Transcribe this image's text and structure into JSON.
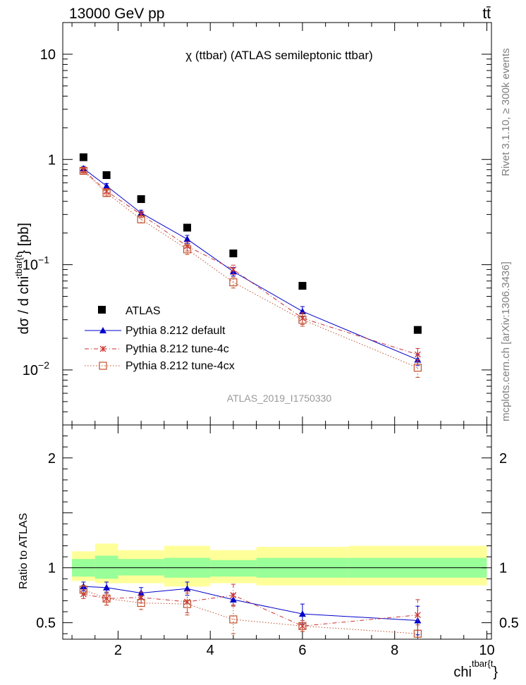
{
  "header": {
    "left_title": "13000 GeV pp",
    "right_title": "tt̄",
    "side_label_top": "Rivet 3.1.10, ≥ 300k events",
    "side_label_bottom": "mcplots.cern.ch [arXiv:1306.3436]"
  },
  "colors": {
    "atlas": "#000000",
    "default": "#0000cc",
    "tune4c": "#cc3333",
    "tune4cx": "#c0502a",
    "band_inner": "#99ff99",
    "band_outer": "#ffff99"
  },
  "chart_data": [
    {
      "type": "scatter",
      "scale": "log",
      "title": "χ (ttbar) (ATLAS semileptonic ttbar)",
      "watermark": "ATLAS_2019_I1750330",
      "ylabel_main": "dσ / d chi",
      "ylabel_sup": "tbar{t",
      "ylabel_tail": "} [pb]",
      "xlim": [
        0.8,
        10.1
      ],
      "ylim": [
        0.003,
        20
      ],
      "y_ticks": [
        {
          "value": 10,
          "label": "10",
          "exp": ""
        },
        {
          "value": 1,
          "label": "1",
          "exp": ""
        },
        {
          "value": 0.1,
          "label": "10",
          "exp": "−1"
        },
        {
          "value": 0.01,
          "label": "10",
          "exp": "−2"
        }
      ],
      "bin_edges": [
        1,
        1.5,
        2,
        3,
        4,
        5,
        7,
        10
      ],
      "x_centers": [
        1.25,
        1.75,
        2.5,
        3.5,
        4.5,
        6,
        8.5
      ],
      "series": [
        {
          "name": "ATLAS",
          "key": "atlas",
          "marker": "square",
          "values": [
            1.05,
            0.71,
            0.42,
            0.225,
            0.128,
            0.063,
            0.024
          ]
        },
        {
          "name": "Pythia 8.212 default",
          "key": "default",
          "marker": "triangle",
          "line": "solid",
          "values": [
            0.82,
            0.56,
            0.31,
            0.175,
            0.086,
            0.036,
            0.0125
          ],
          "errors": [
            0.04,
            0.03,
            0.02,
            0.015,
            0.008,
            0.004,
            0.0015
          ]
        },
        {
          "name": "Pythia 8.212 tune-4c",
          "key": "tune4c",
          "marker": "star",
          "line": "dashdot",
          "values": [
            0.79,
            0.5,
            0.3,
            0.15,
            0.09,
            0.031,
            0.014
          ],
          "errors": [
            0.04,
            0.03,
            0.02,
            0.015,
            0.009,
            0.004,
            0.002
          ]
        },
        {
          "name": "Pythia 8.212 tune-4cx",
          "key": "tune4cx",
          "marker": "opensquare",
          "line": "dotted",
          "values": [
            0.78,
            0.48,
            0.27,
            0.14,
            0.068,
            0.03,
            0.0105
          ],
          "errors": [
            0.04,
            0.03,
            0.02,
            0.015,
            0.008,
            0.004,
            0.002
          ]
        }
      ]
    },
    {
      "type": "scatter",
      "scale": "linear",
      "ylabel": "Ratio to ATLAS",
      "xlabel": "chi",
      "xlabel_sup": "tbar{t",
      "xlabel_tail": "}",
      "xlim": [
        0.8,
        10.1
      ],
      "ylim": [
        0.35,
        2.3
      ],
      "x_ticks": [
        2,
        4,
        6,
        8,
        10
      ],
      "y_ticks": [
        0.5,
        1,
        2
      ],
      "bands": {
        "inner": [
          [
            0.92,
            1.08
          ],
          [
            0.9,
            1.11
          ],
          [
            0.93,
            1.08
          ],
          [
            0.91,
            1.09
          ],
          [
            0.92,
            1.07
          ],
          [
            0.91,
            1.09
          ],
          [
            0.91,
            1.09
          ]
        ],
        "outer": [
          [
            0.88,
            1.15
          ],
          [
            0.86,
            1.22
          ],
          [
            0.86,
            1.16
          ],
          [
            0.83,
            1.2
          ],
          [
            0.86,
            1.16
          ],
          [
            0.84,
            1.19
          ],
          [
            0.84,
            1.2
          ]
        ]
      },
      "series": [
        {
          "name": "Pythia 8.212 default",
          "key": "default",
          "marker": "triangle",
          "line": "solid",
          "values": [
            0.83,
            0.82,
            0.77,
            0.81,
            0.71,
            0.58,
            0.52
          ],
          "errors": [
            0.04,
            0.05,
            0.05,
            0.06,
            0.05,
            0.09,
            0.13
          ]
        },
        {
          "name": "Pythia 8.212 tune-4c",
          "key": "tune4c",
          "marker": "star",
          "line": "dashdot",
          "values": [
            0.76,
            0.72,
            0.73,
            0.69,
            0.75,
            0.47,
            0.57
          ],
          "errors": [
            0.04,
            0.06,
            0.05,
            0.1,
            0.1,
            0.05,
            0.14
          ]
        },
        {
          "name": "Pythia 8.212 tune-4cx",
          "key": "tune4cx",
          "marker": "opensquare",
          "line": "dotted",
          "values": [
            0.8,
            0.72,
            0.68,
            0.67,
            0.53,
            0.47,
            0.4
          ],
          "errors": [
            0.04,
            0.06,
            0.06,
            0.1,
            0.13,
            0.05,
            0.08
          ]
        }
      ]
    }
  ]
}
